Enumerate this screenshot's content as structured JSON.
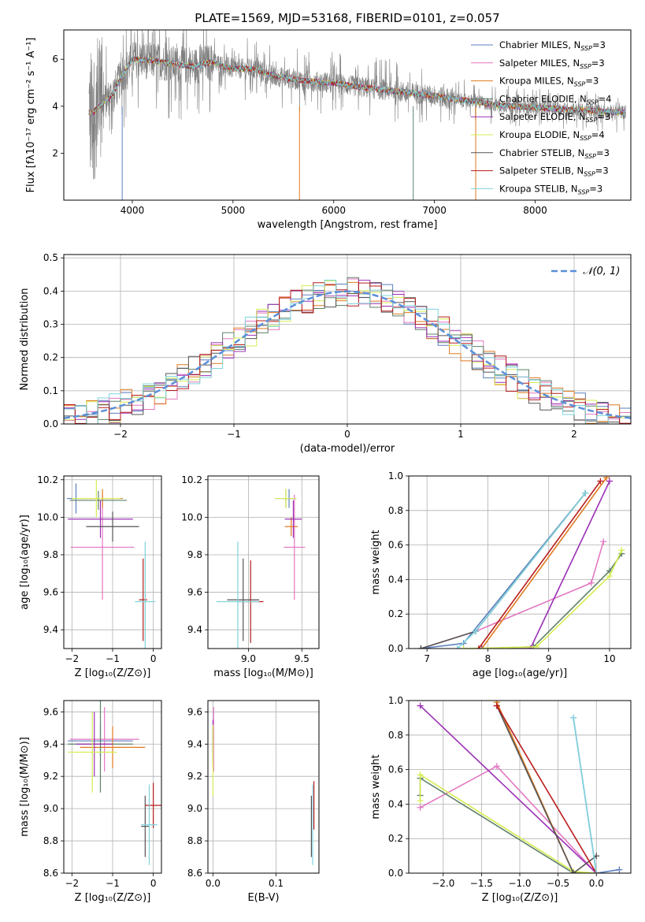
{
  "figure_title": "PLATE=1569, MJD=53168, FIBERID=0101, z=0.057",
  "models": [
    {
      "name": "Chabrier MILES",
      "nssp": "3",
      "color": "#5b7fbf"
    },
    {
      "name": "Salpeter MILES",
      "nssp": "3",
      "color": "#e377c2"
    },
    {
      "name": "Kroupa MILES",
      "nssp": "3",
      "color": "#e07a1f"
    },
    {
      "name": "Chabrier ELODIE",
      "nssp": "4",
      "color": "#5e806a"
    },
    {
      "name": "Salpeter ELODIE",
      "nssp": "3",
      "color": "#9b30b5"
    },
    {
      "name": "Kroupa ELODIE",
      "nssp": "4",
      "color": "#d6ec50"
    },
    {
      "name": "Chabrier STELIB",
      "nssp": "3",
      "color": "#555555"
    },
    {
      "name": "Salpeter STELIB",
      "nssp": "3",
      "color": "#b81c1c"
    },
    {
      "name": "Kroupa STELIB",
      "nssp": "3",
      "color": "#7fd3dc"
    }
  ],
  "chart_data": [
    {
      "type": "line",
      "id": "spectrum",
      "xlabel": "wavelength [Angstrom, rest frame]",
      "ylabel": "Flux [fλ10⁻¹⁷ erg cm⁻² s⁻¹ A⁻¹]",
      "xlim": [
        3320,
        8950
      ],
      "ylim": [
        0,
        7.25
      ],
      "xticks": [
        4000,
        5000,
        6000,
        7000,
        8000
      ],
      "yticks": [
        2,
        4,
        6
      ],
      "grid": false,
      "legend": "top-right",
      "data_color": "#808080",
      "continuum": {
        "x": [
          3600,
          3700,
          3800,
          3900,
          4000,
          4200,
          4400,
          4600,
          4800,
          4900,
          5000,
          5200,
          5400,
          5600,
          5800,
          6000,
          6200,
          6400,
          6600,
          6800,
          7000,
          7200,
          7400,
          7600,
          7800,
          8000,
          8200,
          8400,
          8600,
          8800
        ],
        "y": [
          3.7,
          4.1,
          4.5,
          5.3,
          6.0,
          5.95,
          5.8,
          5.7,
          5.9,
          5.7,
          5.6,
          5.6,
          5.3,
          5.15,
          5.05,
          5.0,
          4.85,
          4.75,
          4.65,
          4.55,
          4.45,
          4.3,
          4.2,
          4.05,
          4.0,
          3.95,
          3.9,
          3.85,
          3.8,
          3.75
        ]
      },
      "noise_scale": 0.5
    },
    {
      "type": "line",
      "id": "residuals",
      "xlabel": "(data-model)/error",
      "ylabel": "Normed distribution",
      "xlim": [
        -2.5,
        2.5
      ],
      "ylim": [
        0,
        0.51
      ],
      "xticks": [
        -2,
        -1,
        0,
        1,
        2
      ],
      "yticks": [
        0.0,
        0.1,
        0.2,
        0.3,
        0.4,
        0.5
      ],
      "grid": true,
      "legend": "top-right",
      "gaussian_label": "𝒩(0, 1)",
      "bin_width": 0.1
    },
    {
      "type": "scatter",
      "id": "age_vs_metallicity",
      "xlabel": "Z [log₁₀(Z/Z⊙)]",
      "ylabel": "age  [log₁₀(age/yr)]",
      "xlim": [
        -2.2,
        0.2
      ],
      "ylim": [
        9.3,
        10.22
      ],
      "xticks": [
        -2,
        -1,
        0
      ],
      "yticks": [
        9.4,
        9.6,
        9.8,
        10.0,
        10.2
      ],
      "grid": true,
      "points": [
        {
          "m": 0,
          "x": -1.9,
          "y": 10.1,
          "xe": 0.22,
          "ye": 0.08
        },
        {
          "m": 1,
          "x": -1.25,
          "y": 9.84,
          "xe": 0.78,
          "ye": 0.28
        },
        {
          "m": 2,
          "x": -1.25,
          "y": 10.1,
          "xe": 0.5,
          "ye": 0.05
        },
        {
          "m": 3,
          "x": -1.35,
          "y": 10.09,
          "xe": 0.7,
          "ye": 0.05
        },
        {
          "m": 4,
          "x": -1.3,
          "y": 9.99,
          "xe": 0.8,
          "ye": 0.1
        },
        {
          "m": 5,
          "x": -1.4,
          "y": 10.1,
          "xe": 0.6,
          "ye": 0.1
        },
        {
          "m": 6,
          "x": -1.0,
          "y": 9.95,
          "xe": 0.65,
          "ye": 0.08
        },
        {
          "m": 7,
          "x": -0.25,
          "y": 9.56,
          "xe": 0.1,
          "ye": 0.22
        },
        {
          "m": 8,
          "x": -0.2,
          "y": 9.55,
          "xe": 0.25,
          "ye": 0.32
        }
      ]
    },
    {
      "type": "scatter",
      "id": "age_vs_mass",
      "xlabel": "mass [log₁₀(M/M⊙)]",
      "ylabel": "",
      "xlim": [
        8.62,
        9.66
      ],
      "ylim": [
        9.3,
        10.22
      ],
      "xticks": [
        9.0,
        9.5
      ],
      "yticks": [
        9.4,
        9.6,
        9.8,
        10.0,
        10.2
      ],
      "grid": true,
      "points": [
        {
          "m": 0,
          "x": 9.38,
          "y": 10.1,
          "xe": 0.05,
          "ye": 0.05
        },
        {
          "m": 1,
          "x": 9.43,
          "y": 9.84,
          "xe": 0.1,
          "ye": 0.28
        },
        {
          "m": 2,
          "x": 9.4,
          "y": 9.95,
          "xe": 0.06,
          "ye": 0.05
        },
        {
          "m": 3,
          "x": 9.35,
          "y": 10.1,
          "xe": 0.1,
          "ye": 0.05
        },
        {
          "m": 4,
          "x": 9.42,
          "y": 9.99,
          "xe": 0.08,
          "ye": 0.1
        },
        {
          "m": 5,
          "x": 9.35,
          "y": 10.1,
          "xe": 0.1,
          "ye": 0.05
        },
        {
          "m": 6,
          "x": 8.95,
          "y": 9.56,
          "xe": 0.15,
          "ye": 0.22
        },
        {
          "m": 7,
          "x": 9.02,
          "y": 9.55,
          "xe": 0.12,
          "ye": 0.22
        },
        {
          "m": 8,
          "x": 8.9,
          "y": 9.55,
          "xe": 0.2,
          "ye": 0.32
        }
      ]
    },
    {
      "type": "line",
      "id": "mass_weight_vs_age",
      "xlabel": "age  [log₁₀(age/yr)]",
      "ylabel": "mass weight",
      "xlim": [
        6.7,
        10.35
      ],
      "ylim": [
        0,
        1.0
      ],
      "xticks": [
        7,
        8,
        9,
        10
      ],
      "yticks": [
        0.0,
        0.2,
        0.4,
        0.6,
        0.8,
        1.0
      ],
      "grid": true,
      "series": [
        {
          "m": 0,
          "x": [
            6.9,
            7.6,
            9.6
          ],
          "y": [
            0.0,
            0.03,
            0.9
          ]
        },
        {
          "m": 1,
          "x": [
            6.9,
            7.8,
            9.7,
            9.9
          ],
          "y": [
            0.0,
            0.1,
            0.38,
            0.62
          ]
        },
        {
          "m": 2,
          "x": [
            7.9,
            9.95
          ],
          "y": [
            0.0,
            0.99
          ]
        },
        {
          "m": 3,
          "x": [
            7.9,
            8.75,
            10.0,
            10.2
          ],
          "y": [
            0.0,
            0.01,
            0.45,
            0.55
          ]
        },
        {
          "m": 4,
          "x": [
            7.9,
            8.7,
            10.0
          ],
          "y": [
            0.0,
            0.0,
            0.97
          ]
        },
        {
          "m": 5,
          "x": [
            7.6,
            8.8,
            10.0,
            10.2
          ],
          "y": [
            0.0,
            0.01,
            0.42,
            0.57
          ]
        },
        {
          "m": 6,
          "x": [
            6.9,
            7.8,
            9.6
          ],
          "y": [
            0.0,
            0.1,
            0.9
          ]
        },
        {
          "m": 7,
          "x": [
            7.85,
            9.85
          ],
          "y": [
            0.0,
            0.97
          ]
        },
        {
          "m": 8,
          "x": [
            7.5,
            7.8,
            9.6
          ],
          "y": [
            0.0,
            0.1,
            0.9
          ]
        }
      ]
    },
    {
      "type": "scatter",
      "id": "mass_vs_metallicity",
      "xlabel": "Z [log₁₀(Z/Z⊙)]",
      "ylabel": "mass [log₁₀(M/M⊙)]",
      "xlim": [
        -2.2,
        0.2
      ],
      "ylim": [
        8.6,
        9.67
      ],
      "xticks": [
        -2,
        -1,
        0
      ],
      "yticks": [
        8.6,
        8.8,
        9.0,
        9.2,
        9.4,
        9.6
      ],
      "grid": true,
      "points": [
        {
          "m": 0,
          "x": -1.3,
          "y": 9.42,
          "xe": 0.8,
          "ye": 0.1
        },
        {
          "m": 1,
          "x": -1.2,
          "y": 9.43,
          "xe": 0.85,
          "ye": 0.2
        },
        {
          "m": 2,
          "x": -1.0,
          "y": 9.38,
          "xe": 0.8,
          "ye": 0.13
        },
        {
          "m": 3,
          "x": -1.3,
          "y": 9.4,
          "xe": 0.8,
          "ye": 0.3
        },
        {
          "m": 4,
          "x": -1.45,
          "y": 9.4,
          "xe": 0.45,
          "ye": 0.2
        },
        {
          "m": 5,
          "x": -1.5,
          "y": 9.35,
          "xe": 0.6,
          "ye": 0.25
        },
        {
          "m": 6,
          "x": -0.2,
          "y": 8.89,
          "xe": 0.1,
          "ye": 0.19
        },
        {
          "m": 7,
          "x": 0.0,
          "y": 9.02,
          "xe": 0.2,
          "ye": 0.14
        },
        {
          "m": 8,
          "x": -0.1,
          "y": 8.9,
          "xe": 0.2,
          "ye": 0.25
        }
      ]
    },
    {
      "type": "scatter",
      "id": "mass_vs_ebv",
      "xlabel": "E(B-V)",
      "ylabel": "",
      "xlim": [
        -0.008,
        0.168
      ],
      "ylim": [
        8.6,
        9.67
      ],
      "xticks": [
        0.0,
        0.1
      ],
      "yticks": [
        8.6,
        8.8,
        9.0,
        9.2,
        9.4,
        9.6
      ],
      "grid": true,
      "points": [
        {
          "m": 0,
          "x": 0.0,
          "y": 9.42,
          "xe": 0.0,
          "ye": 0.08
        },
        {
          "m": 1,
          "x": 0.001,
          "y": 9.43,
          "xe": 0.0,
          "ye": 0.2
        },
        {
          "m": 2,
          "x": 0.0,
          "y": 9.38,
          "xe": 0.0,
          "ye": 0.12
        },
        {
          "m": 3,
          "x": 0.0,
          "y": 9.4,
          "xe": 0.0,
          "ye": 0.1
        },
        {
          "m": 4,
          "x": 0.0,
          "y": 9.45,
          "xe": 0.0,
          "ye": 0.1
        },
        {
          "m": 5,
          "x": 0.0,
          "y": 9.3,
          "xe": 0.0,
          "ye": 0.22
        },
        {
          "m": 6,
          "x": 0.156,
          "y": 8.89,
          "xe": 0.0,
          "ye": 0.19
        },
        {
          "m": 7,
          "x": 0.16,
          "y": 9.02,
          "xe": 0.0,
          "ye": 0.15
        },
        {
          "m": 8,
          "x": 0.158,
          "y": 8.9,
          "xe": 0.0,
          "ye": 0.25
        }
      ]
    },
    {
      "type": "line",
      "id": "mass_weight_vs_metallicity",
      "xlabel": "Z [log₁₀(Z/Z⊙)]",
      "ylabel": "mass weight",
      "xlim": [
        -2.45,
        0.45
      ],
      "ylim": [
        0,
        1.0
      ],
      "xticks": [
        -2.0,
        -1.5,
        -1.0,
        -0.5,
        0.0
      ],
      "yticks": [
        0.0,
        0.2,
        0.4,
        0.6,
        0.8,
        1.0
      ],
      "grid": true,
      "series": [
        {
          "m": 0,
          "x": [
            -0.3,
            0.0,
            0.3
          ],
          "y": [
            0.9,
            0.0,
            0.02
          ]
        },
        {
          "m": 1,
          "x": [
            -2.3,
            -1.3,
            0.0
          ],
          "y": [
            0.38,
            0.62,
            0.0
          ]
        },
        {
          "m": 2,
          "x": [
            -1.3,
            -0.3,
            0.0
          ],
          "y": [
            0.99,
            0.0,
            0.0
          ]
        },
        {
          "m": 3,
          "x": [
            -2.3,
            -2.3,
            -0.3,
            0.0
          ],
          "y": [
            0.45,
            0.55,
            0.0,
            0.0
          ]
        },
        {
          "m": 4,
          "x": [
            -2.3,
            0.0
          ],
          "y": [
            0.97,
            0.0
          ]
        },
        {
          "m": 5,
          "x": [
            -2.3,
            -2.3,
            -0.3,
            0.0
          ],
          "y": [
            0.42,
            0.57,
            0.01,
            0.0
          ]
        },
        {
          "m": 6,
          "x": [
            -1.3,
            -0.3,
            0.0
          ],
          "y": [
            0.97,
            0.0,
            0.1
          ]
        },
        {
          "m": 7,
          "x": [
            -1.3,
            0.0
          ],
          "y": [
            0.97,
            0.0
          ]
        },
        {
          "m": 8,
          "x": [
            -0.3,
            0.0
          ],
          "y": [
            0.9,
            0.0
          ]
        }
      ]
    }
  ]
}
